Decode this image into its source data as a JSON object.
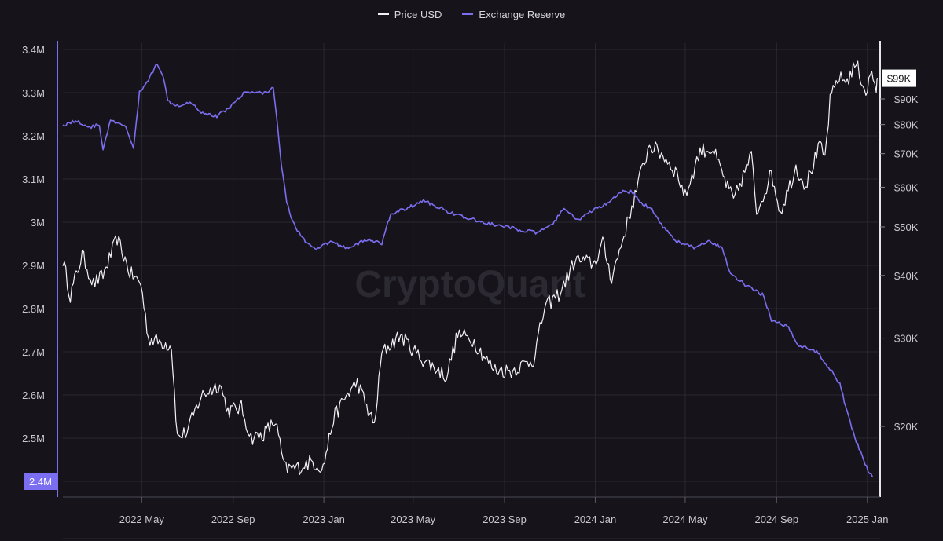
{
  "legend": {
    "price_label": "Price USD",
    "reserve_label": "Exchange Reserve"
  },
  "watermark": "CryptoQuant",
  "colors": {
    "background": "#16141a",
    "grid": "#2a2830",
    "price": "#f2f2f4",
    "reserve": "#7b6ef0"
  },
  "chart_data": {
    "type": "line",
    "x_labels": [
      "2022 May",
      "2022 Sep",
      "2023 Jan",
      "2023 May",
      "2023 Sep",
      "2024 Jan",
      "2024 May",
      "2024 Sep",
      "2025 Jan"
    ],
    "x_range": [
      "2022-01-15",
      "2025-01-15"
    ],
    "left_axis": {
      "name": "Exchange Reserve",
      "range": [
        2.4,
        3.4
      ],
      "ticks": [
        "3.4M",
        "3.3M",
        "3.2M",
        "3.1M",
        "3M",
        "2.9M",
        "2.8M",
        "2.7M",
        "2.6M",
        "2.5M",
        "2.4M"
      ],
      "current_badge": "2.4M"
    },
    "right_axis": {
      "name": "Price USD",
      "scale": "log",
      "ticks": [
        "$90K",
        "$80K",
        "$70K",
        "$60K",
        "$50K",
        "$40K",
        "$30K",
        "$20K"
      ],
      "current_badge": "$99K"
    },
    "series": [
      {
        "name": "Price USD",
        "axis": "right",
        "points": [
          [
            "2022-01-15",
            43000
          ],
          [
            "2022-01-25",
            36500
          ],
          [
            "2022-02-10",
            44000
          ],
          [
            "2022-02-25",
            38500
          ],
          [
            "2022-03-10",
            40000
          ],
          [
            "2022-03-29",
            47500
          ],
          [
            "2022-04-15",
            40500
          ],
          [
            "2022-04-30",
            38500
          ],
          [
            "2022-05-10",
            30000
          ],
          [
            "2022-05-25",
            29500
          ],
          [
            "2022-06-10",
            29000
          ],
          [
            "2022-06-18",
            19000
          ],
          [
            "2022-07-01",
            19500
          ],
          [
            "2022-07-20",
            23000
          ],
          [
            "2022-08-14",
            24300
          ],
          [
            "2022-08-25",
            21500
          ],
          [
            "2022-09-12",
            21800
          ],
          [
            "2022-09-25",
            19000
          ],
          [
            "2022-10-10",
            19200
          ],
          [
            "2022-10-28",
            20500
          ],
          [
            "2022-11-09",
            16500
          ],
          [
            "2022-11-25",
            16500
          ],
          [
            "2022-12-15",
            17000
          ],
          [
            "2022-12-31",
            16550
          ],
          [
            "2023-01-14",
            20800
          ],
          [
            "2023-01-31",
            23000
          ],
          [
            "2023-02-15",
            24500
          ],
          [
            "2023-03-10",
            20000
          ],
          [
            "2023-03-20",
            28000
          ],
          [
            "2023-04-14",
            30400
          ],
          [
            "2023-05-10",
            27500
          ],
          [
            "2023-06-15",
            25200
          ],
          [
            "2023-06-30",
            30600
          ],
          [
            "2023-07-20",
            29800
          ],
          [
            "2023-08-17",
            26000
          ],
          [
            "2023-09-10",
            25800
          ],
          [
            "2023-10-10",
            27200
          ],
          [
            "2023-10-25",
            34500
          ],
          [
            "2023-11-15",
            37000
          ],
          [
            "2023-12-05",
            43000
          ],
          [
            "2023-12-31",
            42300
          ],
          [
            "2024-01-11",
            46500
          ],
          [
            "2024-01-23",
            39500
          ],
          [
            "2024-02-15",
            52000
          ],
          [
            "2024-03-05",
            66000
          ],
          [
            "2024-03-14",
            73000
          ],
          [
            "2024-04-01",
            69500
          ],
          [
            "2024-04-20",
            64000
          ],
          [
            "2024-05-01",
            57500
          ],
          [
            "2024-05-21",
            71000
          ],
          [
            "2024-06-07",
            71500
          ],
          [
            "2024-06-25",
            61000
          ],
          [
            "2024-07-05",
            56500
          ],
          [
            "2024-07-29",
            69500
          ],
          [
            "2024-08-05",
            53500
          ],
          [
            "2024-08-25",
            64000
          ],
          [
            "2024-09-06",
            53500
          ],
          [
            "2024-09-27",
            65800
          ],
          [
            "2024-10-10",
            60500
          ],
          [
            "2024-10-29",
            72500
          ],
          [
            "2024-11-05",
            68500
          ],
          [
            "2024-11-12",
            89000
          ],
          [
            "2024-11-22",
            99000
          ],
          [
            "2024-12-05",
            98000
          ],
          [
            "2024-12-17",
            106000
          ],
          [
            "2024-12-30",
            92500
          ],
          [
            "2025-01-07",
            102000
          ],
          [
            "2025-01-13",
            94000
          ],
          [
            "2025-01-15",
            99000
          ]
        ]
      },
      {
        "name": "Exchange Reserve",
        "axis": "left",
        "points": [
          [
            "2022-01-15",
            3.225
          ],
          [
            "2022-02-01",
            3.235
          ],
          [
            "2022-02-20",
            3.22
          ],
          [
            "2022-03-05",
            3.225
          ],
          [
            "2022-03-10",
            3.17
          ],
          [
            "2022-03-20",
            3.235
          ],
          [
            "2022-04-10",
            3.22
          ],
          [
            "2022-04-20",
            3.17
          ],
          [
            "2022-04-28",
            3.3
          ],
          [
            "2022-05-10",
            3.33
          ],
          [
            "2022-05-22",
            3.368
          ],
          [
            "2022-05-30",
            3.34
          ],
          [
            "2022-06-05",
            3.28
          ],
          [
            "2022-06-20",
            3.27
          ],
          [
            "2022-07-05",
            3.28
          ],
          [
            "2022-07-20",
            3.255
          ],
          [
            "2022-08-10",
            3.245
          ],
          [
            "2022-08-30",
            3.27
          ],
          [
            "2022-09-15",
            3.3
          ],
          [
            "2022-10-15",
            3.3
          ],
          [
            "2022-10-25",
            3.31
          ],
          [
            "2022-10-30",
            3.24
          ],
          [
            "2022-11-05",
            3.13
          ],
          [
            "2022-11-12",
            3.05
          ],
          [
            "2022-11-20",
            3.0
          ],
          [
            "2022-12-05",
            2.96
          ],
          [
            "2022-12-20",
            2.935
          ],
          [
            "2023-01-10",
            2.955
          ],
          [
            "2023-02-01",
            2.94
          ],
          [
            "2023-03-01",
            2.96
          ],
          [
            "2023-03-20",
            2.95
          ],
          [
            "2023-04-01",
            3.02
          ],
          [
            "2023-04-20",
            3.03
          ],
          [
            "2023-05-15",
            3.05
          ],
          [
            "2023-06-10",
            3.03
          ],
          [
            "2023-07-10",
            3.01
          ],
          [
            "2023-08-15",
            2.995
          ],
          [
            "2023-09-15",
            2.985
          ],
          [
            "2023-10-15",
            2.975
          ],
          [
            "2023-11-01",
            2.99
          ],
          [
            "2023-11-20",
            3.03
          ],
          [
            "2023-12-10",
            3.005
          ],
          [
            "2023-12-31",
            3.03
          ],
          [
            "2024-01-20",
            3.045
          ],
          [
            "2024-02-05",
            3.07
          ],
          [
            "2024-02-20",
            3.07
          ],
          [
            "2024-03-05",
            3.04
          ],
          [
            "2024-03-15",
            3.035
          ],
          [
            "2024-04-01",
            2.99
          ],
          [
            "2024-04-20",
            2.955
          ],
          [
            "2024-05-15",
            2.94
          ],
          [
            "2024-06-01",
            2.955
          ],
          [
            "2024-06-20",
            2.94
          ],
          [
            "2024-07-01",
            2.88
          ],
          [
            "2024-07-25",
            2.85
          ],
          [
            "2024-08-15",
            2.83
          ],
          [
            "2024-08-25",
            2.77
          ],
          [
            "2024-09-15",
            2.76
          ],
          [
            "2024-10-01",
            2.715
          ],
          [
            "2024-10-25",
            2.7
          ],
          [
            "2024-11-10",
            2.665
          ],
          [
            "2024-11-25",
            2.625
          ],
          [
            "2024-12-05",
            2.56
          ],
          [
            "2024-12-15",
            2.5
          ],
          [
            "2024-12-25",
            2.46
          ],
          [
            "2025-01-02",
            2.425
          ],
          [
            "2025-01-08",
            2.41
          ]
        ]
      }
    ]
  }
}
